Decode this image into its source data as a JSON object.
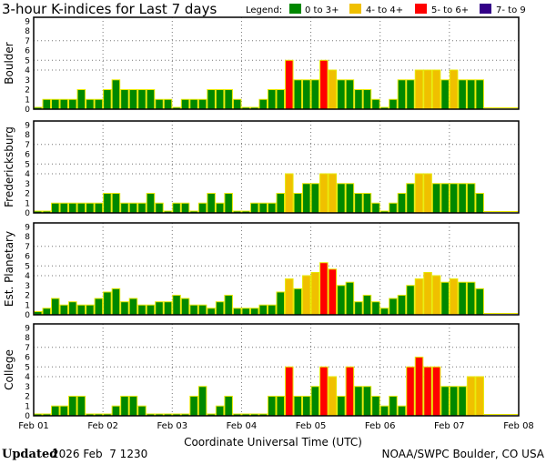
{
  "title": "3-hour K-indices for Last 7 days",
  "legend": {
    "label": "Legend:",
    "items": [
      {
        "label": "0 to 3+",
        "color": "#008800"
      },
      {
        "label": "4- to 4+",
        "color": "#f0c000"
      },
      {
        "label": "5- to 6+",
        "color": "#ff0000"
      },
      {
        "label": "7- to 9",
        "color": "#330088"
      }
    ]
  },
  "xlabel": "Coordinate Universal Time (UTC)",
  "xticks": [
    "Feb 01",
    "Feb 02",
    "Feb 03",
    "Feb 04",
    "Feb 05",
    "Feb 06",
    "Feb 07",
    "Feb 08"
  ],
  "yticks": [
    "0",
    "1",
    "2",
    "3",
    "4",
    "5",
    "6",
    "7",
    "8",
    "9"
  ],
  "footer": {
    "updated_label": "Updated",
    "updated_value": "2026 Feb  7 1230",
    "credit": "NOAA/SWPC Boulder, CO USA"
  },
  "chart_data": [
    {
      "type": "bar",
      "title": "Boulder",
      "ylabel": "Boulder",
      "ylim": [
        0,
        9
      ],
      "bars_per_day": 8,
      "values": [
        0,
        1,
        1,
        1,
        1,
        2,
        1,
        1,
        2,
        3,
        2,
        2,
        2,
        2,
        1,
        1,
        0,
        1,
        1,
        1,
        2,
        2,
        2,
        1,
        0,
        0,
        1,
        2,
        2,
        5,
        3,
        3,
        3,
        5,
        4,
        3,
        3,
        2,
        2,
        1,
        0,
        1,
        3,
        3,
        4,
        4,
        4,
        3,
        4,
        3,
        3,
        3,
        null,
        null,
        null,
        null
      ]
    },
    {
      "type": "bar",
      "title": "Fredericksburg",
      "ylabel": "Fredericksburg",
      "ylim": [
        0,
        9
      ],
      "bars_per_day": 8,
      "values": [
        0,
        0,
        1,
        1,
        1,
        1,
        1,
        1,
        2,
        2,
        1,
        1,
        1,
        2,
        1,
        0,
        1,
        1,
        0,
        1,
        2,
        1,
        2,
        0,
        0,
        1,
        1,
        1,
        2,
        4,
        2,
        3,
        3,
        4,
        4,
        3,
        3,
        2,
        2,
        1,
        0,
        1,
        2,
        3,
        4,
        4,
        3,
        3,
        3,
        3,
        3,
        2,
        null,
        null,
        null,
        null
      ]
    },
    {
      "type": "bar",
      "title": "Est. Planetary",
      "ylabel": "Est. Planetary",
      "ylim": [
        0,
        9
      ],
      "bars_per_day": 8,
      "values": [
        0.33,
        0.67,
        1.67,
        1,
        1.33,
        1,
        1,
        1.67,
        2.33,
        2.67,
        1.33,
        1.67,
        1,
        1,
        1.33,
        1.33,
        2,
        1.67,
        1,
        1,
        0.67,
        1.33,
        2,
        0.67,
        0.67,
        0.67,
        1,
        1,
        2.33,
        3.67,
        2.67,
        4,
        4.33,
        5.33,
        4.67,
        3,
        3.33,
        1.33,
        2,
        1.33,
        0.67,
        1.67,
        2,
        3,
        3.67,
        4.33,
        4,
        3.33,
        3.67,
        3.33,
        3.33,
        2.67,
        null,
        null,
        null,
        null
      ]
    },
    {
      "type": "bar",
      "title": "College",
      "ylabel": "College",
      "ylim": [
        0,
        9
      ],
      "bars_per_day": 8,
      "values": [
        0,
        0,
        1,
        1,
        2,
        2,
        0,
        0,
        0,
        1,
        2,
        2,
        1,
        0,
        0,
        0,
        0,
        0,
        2,
        3,
        0,
        1,
        2,
        0,
        0,
        0,
        0,
        2,
        2,
        5,
        2,
        2,
        3,
        5,
        4,
        2,
        5,
        3,
        3,
        2,
        1,
        2,
        1,
        5,
        6,
        5,
        5,
        3,
        3,
        3,
        4,
        4,
        null,
        null,
        null,
        null
      ]
    }
  ]
}
